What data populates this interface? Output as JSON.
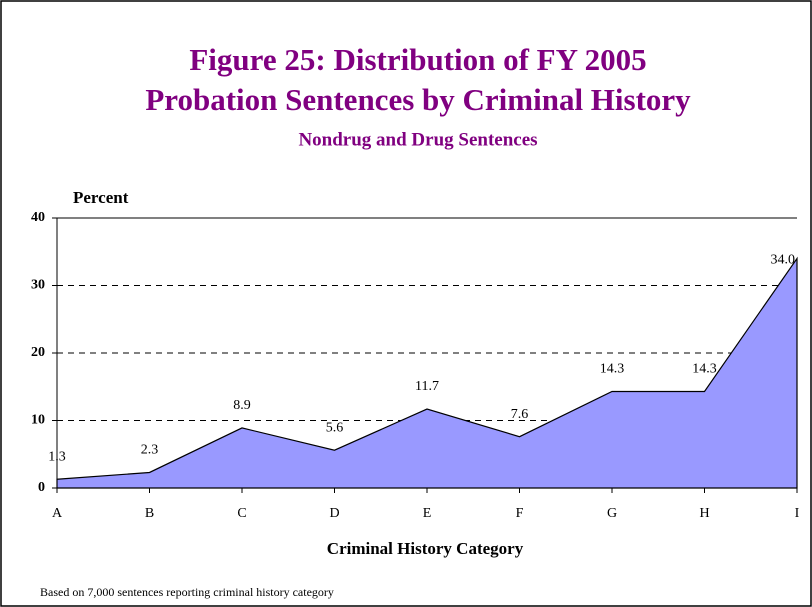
{
  "chart_data": {
    "type": "area",
    "title": [
      "Figure 25: Distribution of FY 2005",
      "Probation Sentences by Criminal History"
    ],
    "subtitle": "Nondrug and Drug Sentences",
    "y_label": "Percent",
    "x_label": "Criminal History Category",
    "note": "Based on 7,000 sentences reporting criminal history category",
    "categories": [
      "A",
      "B",
      "C",
      "D",
      "E",
      "F",
      "G",
      "H",
      "I"
    ],
    "values": [
      1.3,
      2.3,
      8.9,
      5.6,
      11.7,
      7.6,
      14.3,
      14.3,
      34.0
    ],
    "value_labels": [
      "1.3",
      "2.3",
      "8.9",
      "5.6",
      "11.7",
      "7.6",
      "14.3",
      "14.3",
      "34.0"
    ],
    "color": "#9999ff",
    "ylim": [
      0,
      40
    ],
    "yticks": [
      0,
      10,
      20,
      30,
      40
    ],
    "grid": true
  }
}
